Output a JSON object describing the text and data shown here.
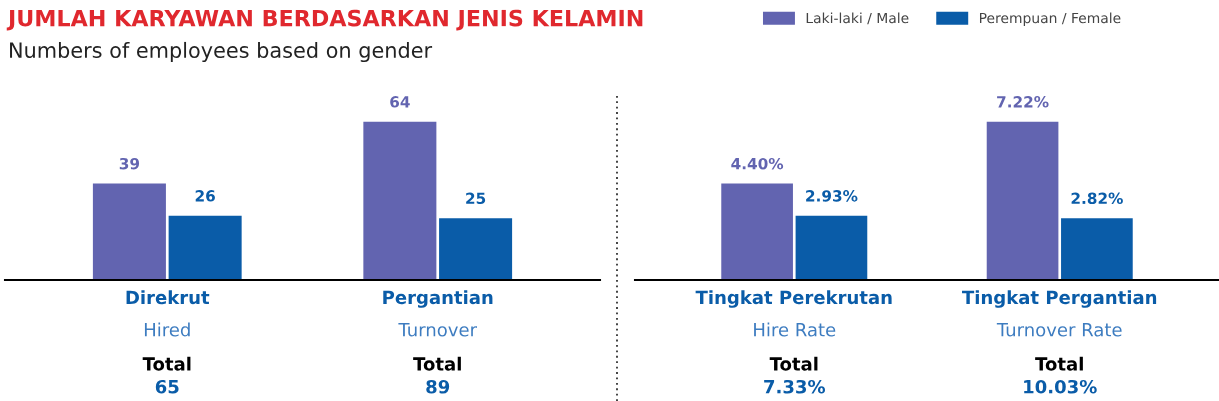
{
  "chart_data": [
    {
      "type": "bar",
      "title": "JUMLAH KARYAWAN BERDASARKAN JENIS KELAMIN",
      "subtitle": "Numbers of employees based on gender",
      "categories": [
        "Direkrut\nHired",
        "Pergantian\nTurnover"
      ],
      "series": [
        {
          "name": "Laki-laki / Male",
          "color": "#6264b0",
          "values": [
            39,
            64
          ]
        },
        {
          "name": "Perempuan / Female",
          "color": "#0a5ca8",
          "values": [
            26,
            25
          ]
        }
      ],
      "data_labels": true,
      "legend": "top right",
      "annotations": [
        "Total\n65",
        "Total\n89"
      ]
    },
    {
      "type": "bar",
      "categories": [
        "Tingkat Perekrutan\nHire Rate",
        "Tingkat Pergantian\nTurnover Rate"
      ],
      "series": [
        {
          "color": "#6264b0",
          "values": [
            4.4,
            7.22
          ],
          "value_labels": [
            "4.40%",
            "7.22%"
          ]
        },
        {
          "color": "#0a5ca8",
          "values": [
            2.93,
            2.82
          ],
          "value_labels": [
            "2.93%",
            "2.82%"
          ]
        }
      ],
      "annotations": [
        "Total\n7.33%",
        "Total\n10.03%"
      ]
    }
  ]
}
